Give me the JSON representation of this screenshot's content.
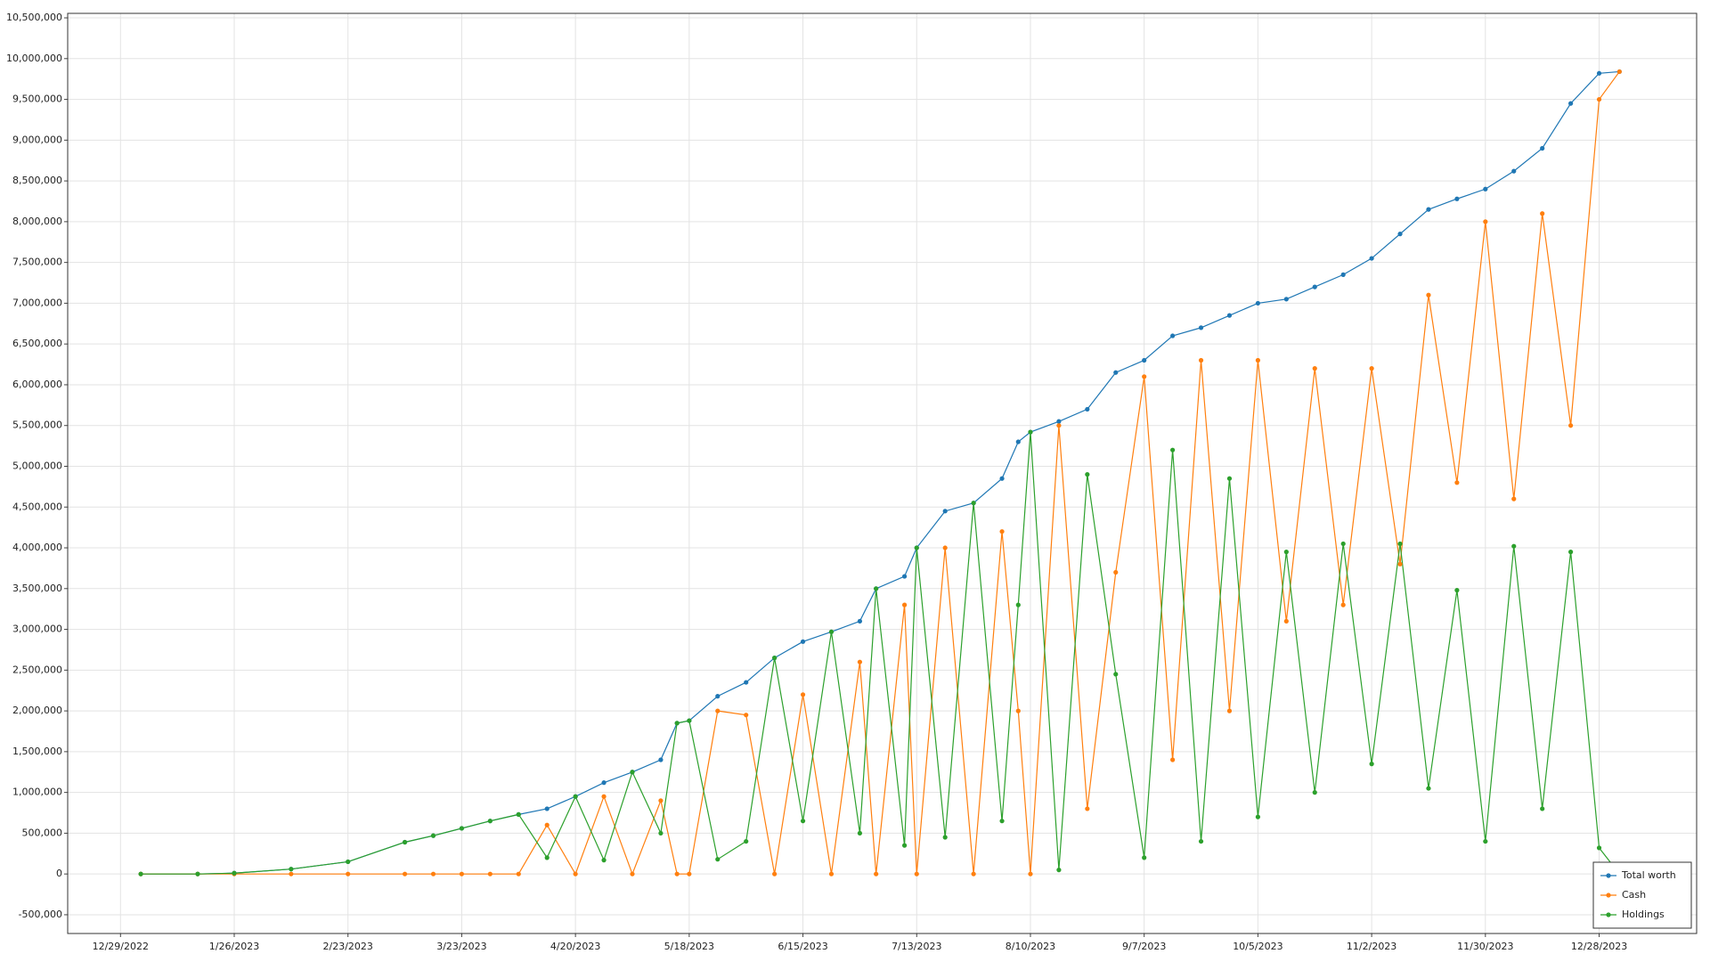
{
  "chart_data": {
    "type": "line",
    "x": [
      "1/3/2023",
      "1/17/2023",
      "1/26/2023",
      "2/9/2023",
      "2/23/2023",
      "3/9/2023",
      "3/16/2023",
      "3/23/2023",
      "3/30/2023",
      "4/6/2023",
      "4/13/2023",
      "4/20/2023",
      "4/27/2023",
      "5/4/2023",
      "5/11/2023",
      "5/15/2023",
      "5/18/2023",
      "5/25/2023",
      "6/1/2023",
      "6/8/2023",
      "6/15/2023",
      "6/22/2023",
      "6/29/2023",
      "7/3/2023",
      "7/10/2023",
      "7/13/2023",
      "7/20/2023",
      "7/27/2023",
      "8/3/2023",
      "8/7/2023",
      "8/10/2023",
      "8/17/2023",
      "8/24/2023",
      "8/31/2023",
      "9/7/2023",
      "9/14/2023",
      "9/21/2023",
      "9/28/2023",
      "10/5/2023",
      "10/12/2023",
      "10/19/2023",
      "10/26/2023",
      "11/2/2023",
      "11/9/2023",
      "11/16/2023",
      "11/23/2023",
      "11/30/2023",
      "12/7/2023",
      "12/14/2023",
      "12/21/2023",
      "12/28/2023",
      "1/2/2024"
    ],
    "series": [
      {
        "name": "Total worth",
        "color": "#1f77b4",
        "values": [
          0,
          0,
          10000,
          60000,
          150000,
          390000,
          470000,
          560000,
          650000,
          730000,
          800000,
          950000,
          1120000,
          1250000,
          1400000,
          1850000,
          1880000,
          2180000,
          2350000,
          2650000,
          2850000,
          2970000,
          3100000,
          3500000,
          3650000,
          4000000,
          4450000,
          4550000,
          4850000,
          5300000,
          5420000,
          5550000,
          5700000,
          6150000,
          6300000,
          6600000,
          6700000,
          6850000,
          7000000,
          7050000,
          7200000,
          7350000,
          7550000,
          7850000,
          8150000,
          8280000,
          8400000,
          8620000,
          8900000,
          9450000,
          9820000,
          9840000
        ]
      },
      {
        "name": "Cash",
        "color": "#ff7f0e",
        "values": [
          0,
          0,
          0,
          0,
          0,
          0,
          0,
          0,
          0,
          0,
          600000,
          0,
          950000,
          0,
          900000,
          0,
          0,
          2000000,
          1950000,
          0,
          2200000,
          0,
          2600000,
          0,
          3300000,
          0,
          4000000,
          0,
          4200000,
          2000000,
          0,
          5500000,
          800000,
          3700000,
          6100000,
          1400000,
          6300000,
          2000000,
          6300000,
          3100000,
          6200000,
          3300000,
          6200000,
          3800000,
          7100000,
          4800000,
          8000000,
          4600000,
          8100000,
          5500000,
          9500000,
          9840000
        ]
      },
      {
        "name": "Holdings",
        "color": "#2ca02c",
        "values": [
          0,
          0,
          10000,
          60000,
          150000,
          390000,
          470000,
          560000,
          650000,
          730000,
          200000,
          950000,
          170000,
          1250000,
          500000,
          1850000,
          1880000,
          180000,
          400000,
          2650000,
          650000,
          2970000,
          500000,
          3500000,
          350000,
          4000000,
          450000,
          4550000,
          650000,
          3300000,
          5420000,
          50000,
          4900000,
          2450000,
          200000,
          5200000,
          400000,
          4850000,
          700000,
          3950000,
          1000000,
          4050000,
          1350000,
          4050000,
          1050000,
          3480000,
          400000,
          4020000,
          800000,
          3950000,
          320000,
          0
        ]
      }
    ],
    "xlim": [
      "12/16/2022",
      "1/21/2024"
    ],
    "xticks": [
      "12/29/2022",
      "1/26/2023",
      "2/23/2023",
      "3/23/2023",
      "4/20/2023",
      "5/18/2023",
      "6/15/2023",
      "7/13/2023",
      "8/10/2023",
      "9/7/2023",
      "10/5/2023",
      "11/2/2023",
      "11/30/2023",
      "12/28/2023"
    ],
    "ylim": [
      -730000,
      10555000
    ],
    "yticks": [
      {
        "value": -500000,
        "label": "-500,000"
      },
      0,
      {
        "value": 500000,
        "label": "500,000"
      },
      {
        "value": 1000000,
        "label": "1,000,000"
      },
      {
        "value": 1500000,
        "label": "1,500,000"
      },
      {
        "value": 2000000,
        "label": "2,000,000"
      },
      {
        "value": 2500000,
        "label": "2,500,000"
      },
      {
        "value": 3000000,
        "label": "3,000,000"
      },
      {
        "value": 3500000,
        "label": "3,500,000"
      },
      {
        "value": 4000000,
        "label": "4,000,000"
      },
      {
        "value": 4500000,
        "label": "4,500,000"
      },
      {
        "value": 5000000,
        "label": "5,000,000"
      },
      {
        "value": 5500000,
        "label": "5,500,000"
      },
      {
        "value": 6000000,
        "label": "6,000,000"
      },
      {
        "value": 6500000,
        "label": "6,500,000"
      },
      {
        "value": 7000000,
        "label": "7,000,000"
      },
      {
        "value": 7500000,
        "label": "7,500,000"
      },
      {
        "value": 8000000,
        "label": "8,000,000"
      },
      {
        "value": 8500000,
        "label": "8,500,000"
      },
      {
        "value": 9000000,
        "label": "9,000,000"
      },
      {
        "value": 9500000,
        "label": "9,500,000"
      },
      {
        "value": 10000000,
        "label": "10,000,000"
      },
      {
        "value": 10500000,
        "label": "10,500,000"
      }
    ],
    "grid": true,
    "legend": "lower right"
  }
}
